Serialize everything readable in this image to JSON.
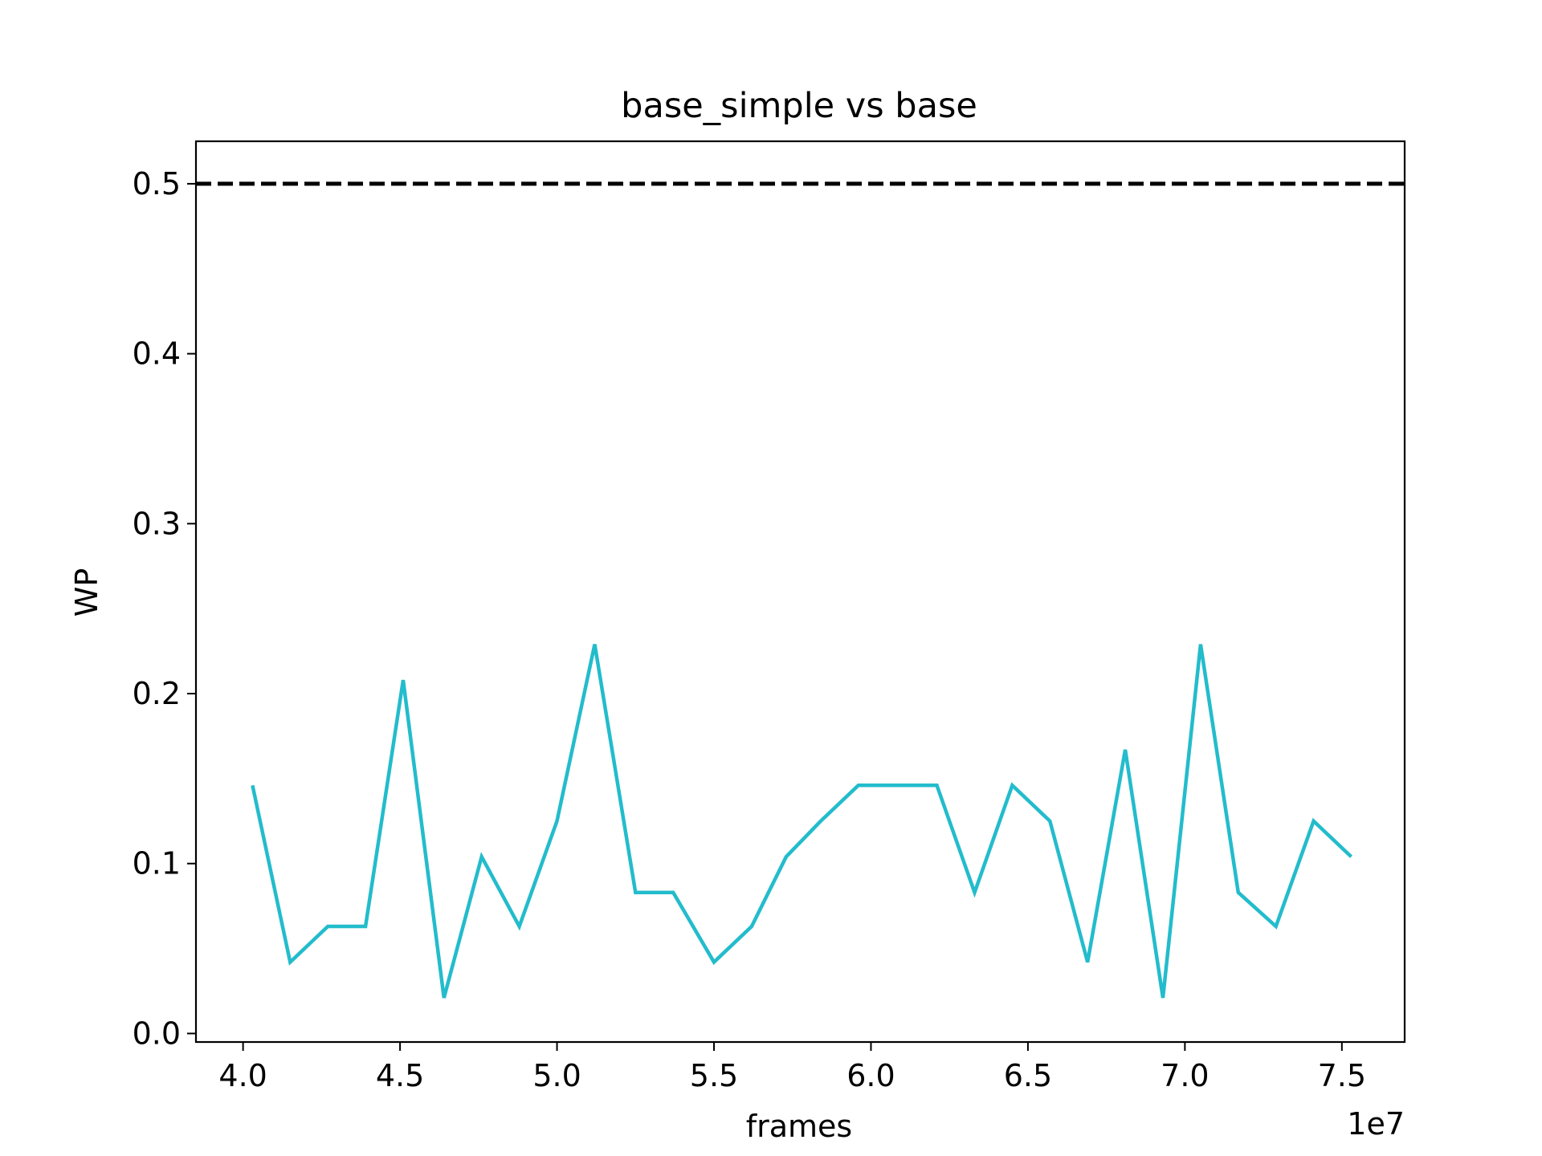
{
  "chart_data": {
    "type": "line",
    "title": "base_simple vs base",
    "xlabel": "frames",
    "ylabel": "WP",
    "x_offset_label": "1e7",
    "xlim": [
      38500000,
      77000000
    ],
    "ylim": [
      -0.005,
      0.525
    ],
    "xticks": [
      40000000,
      45000000,
      50000000,
      55000000,
      60000000,
      65000000,
      70000000,
      75000000
    ],
    "xtick_labels": [
      "4.0",
      "4.5",
      "5.0",
      "5.5",
      "6.0",
      "6.5",
      "7.0",
      "7.5"
    ],
    "yticks": [
      0.0,
      0.1,
      0.2,
      0.3,
      0.4,
      0.5
    ],
    "ytick_labels": [
      "0.0",
      "0.1",
      "0.2",
      "0.3",
      "0.4",
      "0.5"
    ],
    "grid": false,
    "reference_line": {
      "y": 0.5,
      "style": "dashed",
      "color": "#000000"
    },
    "series": [
      {
        "color": "#23bccc",
        "x": [
          40300000,
          41500000,
          42700000,
          43900000,
          45100000,
          46400000,
          47600000,
          48800000,
          50000000,
          51200000,
          52500000,
          53700000,
          55000000,
          56200000,
          57300000,
          58400000,
          59600000,
          60800000,
          62100000,
          63300000,
          64500000,
          65700000,
          66900000,
          68100000,
          69300000,
          70500000,
          71700000,
          72900000,
          74100000,
          75300000
        ],
        "values": [
          0.146,
          0.042,
          0.063,
          0.063,
          0.208,
          0.021,
          0.104,
          0.063,
          0.125,
          0.229,
          0.083,
          0.083,
          0.042,
          0.063,
          0.104,
          0.125,
          0.146,
          0.146,
          0.146,
          0.083,
          0.146,
          0.125,
          0.042,
          0.167,
          0.021,
          0.229,
          0.083,
          0.063,
          0.125,
          0.104
        ]
      }
    ]
  }
}
